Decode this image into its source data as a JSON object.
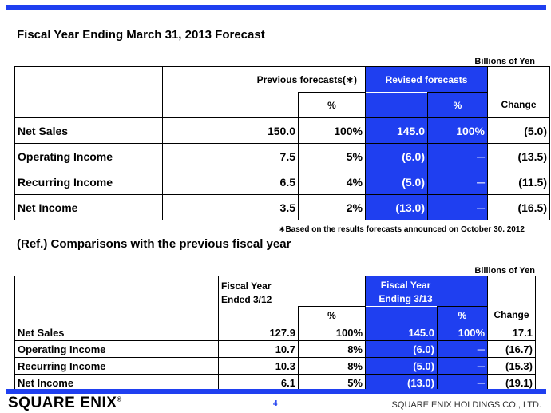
{
  "title": "Fiscal Year Ending March 31, 2013 Forecast",
  "unit": "Billions of Yen",
  "table1": {
    "header_prev": "Previous forecasts(∗)",
    "header_rev": "Revised forecasts",
    "pct": "%",
    "change": "Change",
    "rows": [
      {
        "label": "Net Sales",
        "prev": "150.0",
        "prev_pct": "100%",
        "rev": "145.0",
        "rev_pct": "100%",
        "change": "(5.0)"
      },
      {
        "label": "Operating Income",
        "prev": "7.5",
        "prev_pct": "5%",
        "rev": "(6.0)",
        "rev_pct": "─",
        "change": "(13.5)"
      },
      {
        "label": "Recurring Income",
        "prev": "6.5",
        "prev_pct": "4%",
        "rev": "(5.0)",
        "rev_pct": "─",
        "change": "(11.5)"
      },
      {
        "label": "Net Income",
        "prev": "3.5",
        "prev_pct": "2%",
        "rev": "(13.0)",
        "rev_pct": "─",
        "change": "(16.5)"
      }
    ]
  },
  "note": "∗Based on the results forecasts announced on October 30. 2012",
  "title2": "(Ref.) Comparisons with the previous fiscal year",
  "unit2": "Billions of Yen",
  "table2": {
    "header_prev": "Fiscal Year Ended 3/12",
    "header_rev": "Fiscal Year Ending 3/13",
    "pct": "%",
    "change": "Change",
    "rows": [
      {
        "label": "Net Sales",
        "prev": "127.9",
        "prev_pct": "100%",
        "rev": "145.0",
        "rev_pct": "100%",
        "change": "17.1"
      },
      {
        "label": "Operating Income",
        "prev": "10.7",
        "prev_pct": "8%",
        "rev": "(6.0)",
        "rev_pct": "─",
        "change": "(16.7)"
      },
      {
        "label": "Recurring Income",
        "prev": "10.3",
        "prev_pct": "8%",
        "rev": "(5.0)",
        "rev_pct": "─",
        "change": "(15.3)"
      },
      {
        "label": "Net Income",
        "prev": "6.1",
        "prev_pct": "5%",
        "rev": "(13.0)",
        "rev_pct": "─",
        "change": "(19.1)"
      }
    ]
  },
  "footer": {
    "logo": "SQUARE ENIX",
    "page": "4",
    "company": "SQUARE ENIX HOLDINGS CO., LTD."
  },
  "colors": {
    "accent": "#1f3ff0"
  }
}
